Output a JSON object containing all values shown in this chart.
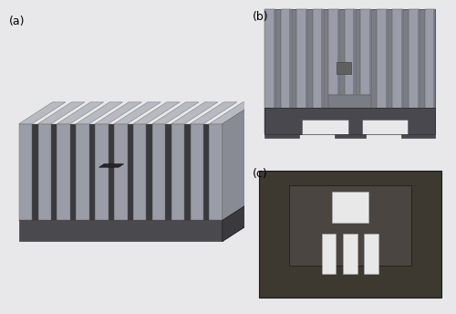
{
  "fig_width": 5.0,
  "fig_height": 3.44,
  "dpi": 100,
  "bg_color": "#e8e8ea",
  "panel_a": {
    "label": "(a)",
    "bg": "#dcdde0",
    "fin_color_front": "#9a9da8",
    "fin_color_top": "#b8bac2",
    "fin_color_right": "#888a94",
    "base_color_front": "#4a4a4e",
    "base_color_right": "#3a3a3e",
    "base_color_top": "#606065",
    "gap_color": "#3a3a3e",
    "hole_color": "#252528",
    "num_fins": 11
  },
  "panel_b": {
    "label": "(b)",
    "bg": "#d0d0d0",
    "fin_color": "#9a9da8",
    "fin_shadow": "#7a7d86",
    "base_color": "#5a5a60",
    "base_dark": "#48484e",
    "bg_plate": "#c8c8c8",
    "hole_color": "#606060",
    "num_fins": 11
  },
  "panel_c": {
    "label": "(c)",
    "bg_color": "#e0e0e0",
    "outer_color": "#3d3830",
    "inner_color": "#4a4540",
    "slot_color": "#e8e8e8",
    "outline_color": "#282320"
  }
}
